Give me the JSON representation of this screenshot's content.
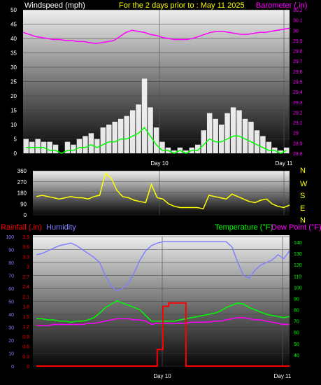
{
  "header": {
    "left_label": "Windspeed (mph)",
    "center_label": "For the 2 days prior to : May 11 2025",
    "right_label": "Barometer (.in)"
  },
  "colors": {
    "windspeed_label": "#ffffff",
    "title": "#ffff00",
    "barometer": "#ff00ff",
    "wind_dir": "#ffff00",
    "rainfall": "#ff0000",
    "humidity": "#8080ff",
    "temperature": "#00ff00",
    "dew_point": "#ff00ff",
    "wind_gust": "#ffffff",
    "wind_avg": "#00ff00"
  },
  "chart_data": [
    {
      "id": "wind-baro",
      "type": "line",
      "x_tick_labels": [
        "Day 10",
        "Day 11"
      ],
      "left_axis": {
        "label": "Windspeed (mph)",
        "ylim": [
          0,
          50
        ],
        "ticks": [
          0,
          5,
          10,
          15,
          20,
          25,
          30,
          35,
          40,
          45,
          50
        ]
      },
      "right_axis": {
        "label": "Barometer (.in)",
        "ylim": [
          28.8,
          30.2
        ],
        "ticks": [
          "28.8",
          "28.9",
          "29",
          "29.1",
          "29.2",
          "29.3",
          "29.4",
          "29.5",
          "29.6",
          "29.7",
          "29.8",
          "29.9",
          "30",
          "30.1",
          "30.2"
        ]
      },
      "series": [
        {
          "key": "barometer",
          "axis": "right",
          "values": [
            29.98,
            29.96,
            29.94,
            29.93,
            29.92,
            29.91,
            29.91,
            29.9,
            29.9,
            29.89,
            29.89,
            29.88,
            29.87,
            29.88,
            29.89,
            29.9,
            29.94,
            29.98,
            30.0,
            29.99,
            29.98,
            29.96,
            29.95,
            29.93,
            29.92,
            29.91,
            29.91,
            29.91,
            29.92,
            29.94,
            29.96,
            29.98,
            29.99,
            29.99,
            29.98,
            29.97,
            29.96,
            29.96,
            29.97,
            29.98,
            29.98,
            29.99,
            30.0,
            30.01,
            30.02
          ]
        },
        {
          "key": "wind_gust",
          "axis": "left",
          "values": [
            5,
            4,
            5,
            4,
            4,
            3,
            0,
            4,
            3,
            5,
            6,
            7,
            5,
            9,
            10,
            11,
            12,
            13,
            15,
            17,
            26,
            16,
            9,
            4,
            2,
            1,
            2,
            1,
            2,
            3,
            8,
            14,
            12,
            10,
            14,
            16,
            15,
            12,
            11,
            8,
            6,
            4,
            2,
            1,
            2
          ]
        },
        {
          "key": "wind_avg",
          "axis": "left",
          "values": [
            2,
            2,
            2,
            2,
            1,
            1,
            0,
            1,
            1,
            2,
            2,
            3,
            2,
            3,
            4,
            4,
            5,
            5,
            6,
            7,
            9,
            6,
            3,
            1,
            1,
            0,
            1,
            0,
            1,
            1,
            3,
            5,
            4,
            4,
            5,
            6,
            6,
            5,
            4,
            3,
            2,
            1,
            1,
            0,
            1
          ]
        }
      ]
    },
    {
      "id": "wind-direction",
      "type": "line",
      "y_ticks": [
        0,
        90,
        180,
        270,
        360
      ],
      "right_labels": [
        "N",
        "W",
        "S",
        "E",
        "N"
      ],
      "series": [
        {
          "key": "wind_dir",
          "values": [
            150,
            160,
            150,
            140,
            130,
            140,
            150,
            140,
            140,
            130,
            150,
            160,
            340,
            300,
            200,
            150,
            140,
            120,
            110,
            100,
            250,
            140,
            130,
            90,
            70,
            60,
            60,
            60,
            60,
            50,
            160,
            150,
            140,
            130,
            170,
            150,
            130,
            110,
            100,
            120,
            130,
            90,
            70,
            60,
            80
          ]
        }
      ]
    },
    {
      "id": "rain-humidity-temp",
      "type": "line",
      "x_tick_labels": [
        "Day 10",
        "Day 11"
      ],
      "left_axis_humidity": {
        "label": "Humidity",
        "ylim": [
          0,
          100
        ],
        "ticks": [
          0,
          10,
          20,
          30,
          40,
          50,
          60,
          70,
          80,
          90,
          100
        ]
      },
      "left_axis_rain": {
        "label": "Rainfall (.in)",
        "ylim": [
          0,
          3.9
        ],
        "ticks": [
          "0",
          "0.3",
          "0.6",
          "0.9",
          "1.2",
          "1.5",
          "1.8",
          "2.1",
          "2.4",
          "2.7",
          "3",
          "3.3",
          "3.6",
          "3.9"
        ]
      },
      "right_axis": {
        "label_temperature": "Temperature (°F)",
        "label_dew_point": "Dew Point (°F)",
        "ylim": [
          30,
          145
        ],
        "ticks": [
          40,
          50,
          60,
          70,
          80,
          90,
          100,
          110,
          120,
          130,
          140
        ]
      },
      "series": [
        {
          "key": "humidity",
          "axis": "humidity",
          "values": [
            86,
            87,
            89,
            91,
            93,
            94,
            95,
            93,
            90,
            87,
            84,
            80,
            70,
            62,
            58,
            60,
            64,
            72,
            82,
            89,
            93,
            95,
            96,
            96,
            96,
            96,
            96,
            96,
            96,
            96,
            96,
            96,
            96,
            96,
            92,
            80,
            70,
            68,
            74,
            78,
            80,
            82,
            86,
            83,
            89
          ]
        },
        {
          "key": "temperature",
          "axis": "temp",
          "values": [
            72,
            72,
            71,
            71,
            70,
            70,
            69,
            70,
            70,
            71,
            73,
            77,
            82,
            85,
            88,
            86,
            84,
            82,
            80,
            75,
            70,
            70,
            70,
            70,
            70,
            71,
            72,
            73,
            74,
            75,
            76,
            77,
            79,
            82,
            84,
            86,
            85,
            82,
            80,
            78,
            76,
            75,
            74,
            73,
            74
          ]
        },
        {
          "key": "dew_point",
          "axis": "temp",
          "values": [
            66,
            66,
            66,
            67,
            67,
            67,
            67,
            67,
            67,
            68,
            68,
            69,
            70,
            71,
            72,
            72,
            72,
            71,
            71,
            70,
            67,
            68,
            68,
            68,
            68,
            68,
            68,
            69,
            69,
            69,
            69,
            70,
            70,
            71,
            72,
            73,
            73,
            72,
            71,
            71,
            70,
            69,
            68,
            67,
            67
          ]
        },
        {
          "key": "rainfall",
          "axis": "rain",
          "values": [
            0,
            0,
            0,
            0,
            0,
            0,
            0,
            0,
            0,
            0,
            0,
            0,
            0,
            0,
            0,
            0,
            0,
            0,
            0,
            0,
            0,
            0.5,
            1.8,
            1.9,
            1.9,
            1.9,
            0,
            0,
            0,
            0,
            0,
            0,
            0,
            0,
            0,
            0,
            0,
            0,
            0,
            0,
            0,
            0,
            0,
            0,
            0
          ]
        }
      ]
    }
  ],
  "bottom": {
    "rainfall_label": "Rainfall (.in)",
    "humidity_label": "Humidity",
    "temperature_label": "Temperature (°F)",
    "dew_point_label": "Dew Point (°F)"
  }
}
